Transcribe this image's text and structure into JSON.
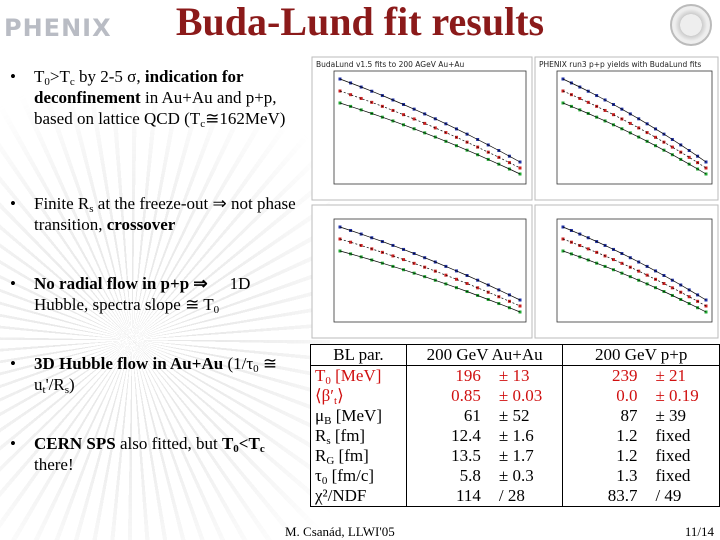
{
  "header": {
    "logo": "PHENIX",
    "title": "Buda-Lund fit results"
  },
  "bullets": [
    [
      "T",
      "0",
      ">T",
      "c",
      " by 2-5 σ, ",
      "indication for deconfinement",
      " in Au+Au and p+p, based on lattice QCD (T",
      "c",
      "≅162MeV)"
    ],
    [
      "Finite R",
      "s",
      " at the freeze-out ⇒ not phase transition, ",
      "crossover"
    ],
    [
      "No radial flow in p+p ⇒",
      "1D",
      "Hubble, spectra slope ≅ T",
      "0"
    ],
    [
      "3D Hubble flow in Au+Au",
      " (1/τ",
      "0",
      " ≅ u",
      "t",
      "'/R",
      "s",
      ")"
    ],
    [
      "CERN SPS",
      " also fitted, but ",
      "T",
      "0",
      "<T",
      "c",
      " there!"
    ]
  ],
  "plots": {
    "auau_title": "BudaLund v1.5 fits to 200 AGeV Au+Au",
    "pp_title": "PHENIX run3 p+p yields with BudaLund fits"
  },
  "table": {
    "header": [
      "BL par.",
      "200 GeV Au+Au",
      "200 GeV p+p"
    ],
    "rows": [
      {
        "label": [
          "T",
          "0",
          " [MeV]"
        ],
        "auau": [
          "196",
          "± 13"
        ],
        "pp": [
          "239",
          "± 21"
        ]
      },
      {
        "label": [
          "⟨β′",
          "t",
          "⟩"
        ],
        "auau": [
          "0.85",
          "± 0.03"
        ],
        "pp": [
          "0.0",
          "± 0.19"
        ]
      },
      {
        "label": [
          "μ",
          "B",
          " [MeV]"
        ],
        "auau": [
          "61",
          "± 52"
        ],
        "pp": [
          "87",
          "± 39"
        ]
      },
      {
        "label": [
          "R",
          "s",
          " [fm]"
        ],
        "auau": [
          "12.4",
          "± 1.6"
        ],
        "pp": [
          "1.2",
          "fixed"
        ]
      },
      {
        "label": [
          "R",
          "G",
          " [fm]"
        ],
        "auau": [
          "13.5",
          "± 1.7"
        ],
        "pp": [
          "1.2",
          "fixed"
        ]
      },
      {
        "label": [
          "τ",
          "0",
          " [fm/c]"
        ],
        "auau": [
          "5.8",
          "± 0.3"
        ],
        "pp": [
          "1.3",
          "fixed"
        ]
      },
      {
        "label": [
          "χ²/NDF"
        ],
        "auau": [
          "114",
          "/ 28"
        ],
        "pp": [
          "83.7",
          "/ 49"
        ]
      }
    ]
  },
  "footer": {
    "author": "M. Csanád, LLWI'05",
    "page": "11/14"
  }
}
